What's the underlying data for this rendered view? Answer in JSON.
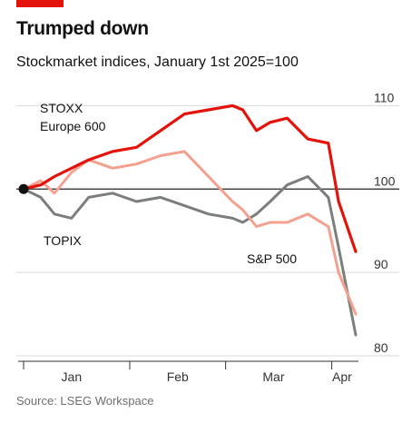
{
  "header": {
    "title": "Trumped down",
    "subtitle": "Stockmarket indices, January 1st 2025=100",
    "source": "Source: LSEG Workspace"
  },
  "colors": {
    "accent": "#e3120b",
    "stoxx": "#e3120b",
    "sp500": "#f4a08f",
    "topix": "#7b7f7c",
    "baseline": "#222222",
    "grid": "#d9d9d9"
  },
  "chart_data": {
    "type": "line",
    "title": "Trumped down",
    "subtitle": "Stockmarket indices, January 1st 2025=100",
    "x_unit": "date (2025)",
    "ylim": [
      80,
      112
    ],
    "yticks": [
      80,
      90,
      100,
      110
    ],
    "ytick_labels": [
      "80",
      "90",
      "100",
      "110"
    ],
    "xticks": [
      {
        "label": "Jan",
        "date": "2025-01-15"
      },
      {
        "label": "Feb",
        "date": "2025-02-15"
      },
      {
        "label": "Mar",
        "date": "2025-03-15"
      },
      {
        "label": "Apr",
        "date": "2025-04-04"
      }
    ],
    "baseline": 100,
    "grid": true,
    "series": [
      {
        "name": "STOXX Europe 600",
        "label_lines": [
          "STOXX",
          "Europe 600"
        ],
        "color": "#e3120b",
        "x": [
          "2025-01-01",
          "2025-01-06",
          "2025-01-10",
          "2025-01-15",
          "2025-01-20",
          "2025-01-27",
          "2025-02-03",
          "2025-02-10",
          "2025-02-17",
          "2025-02-24",
          "2025-03-03",
          "2025-03-06",
          "2025-03-10",
          "2025-03-14",
          "2025-03-19",
          "2025-03-25",
          "2025-03-31",
          "2025-04-03",
          "2025-04-08"
        ],
        "values": [
          100,
          100.5,
          101.5,
          102.5,
          103.5,
          104.5,
          105,
          107,
          109,
          109.5,
          110,
          109.5,
          107,
          108,
          108.5,
          106,
          105.5,
          98.5,
          92.5
        ]
      },
      {
        "name": "S&P 500",
        "label_lines": [
          "S&P 500"
        ],
        "color": "#f4a08f",
        "x": [
          "2025-01-01",
          "2025-01-06",
          "2025-01-10",
          "2025-01-15",
          "2025-01-20",
          "2025-01-27",
          "2025-02-03",
          "2025-02-10",
          "2025-02-17",
          "2025-02-24",
          "2025-03-03",
          "2025-03-06",
          "2025-03-10",
          "2025-03-14",
          "2025-03-19",
          "2025-03-25",
          "2025-03-31",
          "2025-04-03",
          "2025-04-08"
        ],
        "values": [
          100,
          101,
          99.5,
          102,
          103.5,
          102.5,
          103,
          104,
          104.5,
          101.5,
          98.5,
          97.5,
          95.5,
          96,
          96,
          97,
          95.5,
          90,
          85
        ]
      },
      {
        "name": "TOPIX",
        "label_lines": [
          "TOPIX"
        ],
        "color": "#7b7f7c",
        "x": [
          "2025-01-01",
          "2025-01-06",
          "2025-01-10",
          "2025-01-15",
          "2025-01-20",
          "2025-01-27",
          "2025-02-03",
          "2025-02-10",
          "2025-02-17",
          "2025-02-24",
          "2025-03-03",
          "2025-03-06",
          "2025-03-10",
          "2025-03-14",
          "2025-03-19",
          "2025-03-25",
          "2025-03-31",
          "2025-04-03",
          "2025-04-08"
        ],
        "values": [
          100,
          99,
          97,
          96.5,
          99,
          99.5,
          98.5,
          99,
          98,
          97,
          96.5,
          96,
          97,
          98.5,
          100.5,
          101.5,
          99,
          93,
          82.5
        ]
      }
    ]
  }
}
